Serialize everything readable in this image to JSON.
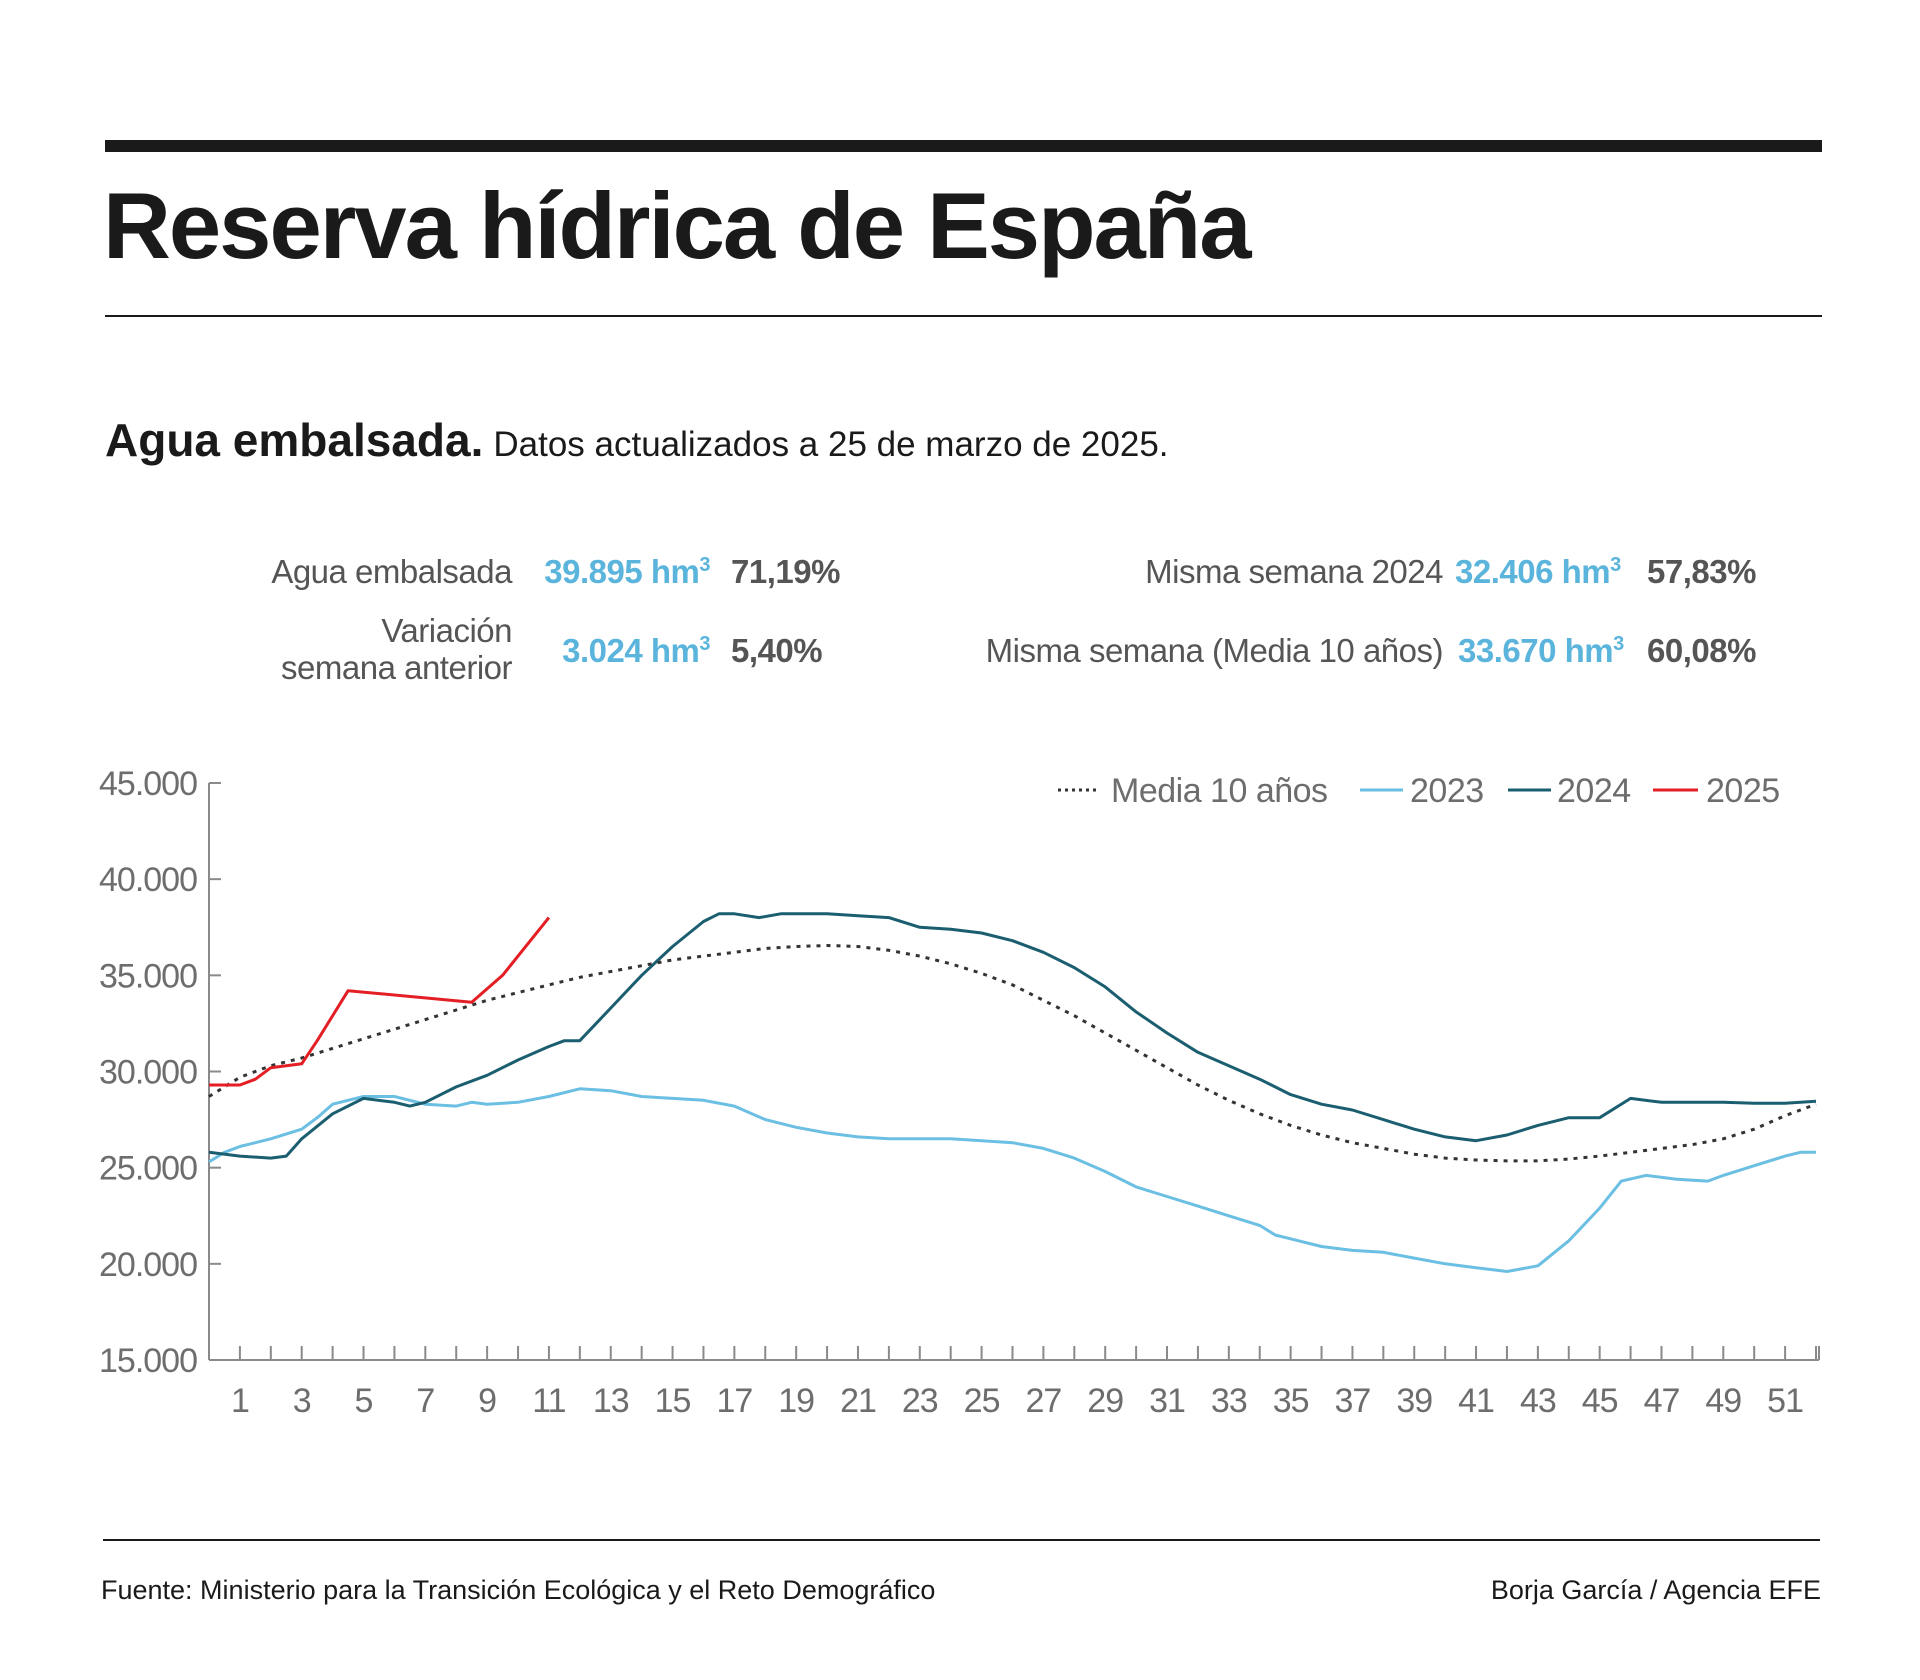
{
  "header": {
    "title": "Reserva hídrica de España",
    "subtitle_bold": "Agua embalsada.",
    "subtitle_rest": "Datos actualizados a 25 de marzo de 2025."
  },
  "stats": {
    "agua_embalsada": {
      "label": "Agua embalsada",
      "value": "39.895 hm",
      "unit_sup": "3",
      "pct": "71,19%"
    },
    "variacion": {
      "label_line1": "Variación",
      "label_line2": "semana anterior",
      "value": "3.024 hm",
      "unit_sup": "3",
      "pct": "5,40%"
    },
    "misma_2024": {
      "label": "Misma semana 2024",
      "value": "32.406 hm",
      "unit_sup": "3",
      "pct": "57,83%"
    },
    "misma_media": {
      "label": "Misma semana (Media 10 años)",
      "value": "33.670 hm",
      "unit_sup": "3",
      "pct": "60,08%"
    }
  },
  "colors": {
    "value_blue": "#5ab4dc",
    "media": "#333333",
    "y2023": "#6bbfe3",
    "y2024": "#1a5e70",
    "y2025": "#e31e24"
  },
  "chart_data": {
    "type": "line",
    "title": "",
    "xlabel": "",
    "ylabel": "",
    "xlim": [
      0,
      52
    ],
    "ylim": [
      15000,
      45000
    ],
    "y_ticks": [
      15000,
      20000,
      25000,
      30000,
      35000,
      40000,
      45000
    ],
    "y_tick_labels": [
      "15.000",
      "20.000",
      "25.000",
      "30.000",
      "35.000",
      "40.000",
      "45.000"
    ],
    "x_tick_labels": [
      "1",
      "3",
      "5",
      "7",
      "9",
      "11",
      "13",
      "15",
      "17",
      "19",
      "21",
      "23",
      "25",
      "27",
      "29",
      "31",
      "33",
      "35",
      "37",
      "39",
      "41",
      "43",
      "45",
      "47",
      "49",
      "51"
    ],
    "grid": false,
    "legend_position": "top-right",
    "series": [
      {
        "name": "Media 10 años",
        "style": "dotted",
        "color": "#333333",
        "x": [
          0,
          1,
          2,
          3,
          4,
          5,
          6,
          7,
          8,
          9,
          10,
          11,
          12,
          13,
          14,
          15,
          16,
          17,
          18,
          19,
          20,
          21,
          22,
          23,
          24,
          25,
          26,
          27,
          28,
          29,
          30,
          31,
          32,
          33,
          34,
          35,
          36,
          37,
          38,
          39,
          40,
          41,
          42,
          43,
          44,
          45,
          46,
          47,
          48,
          49,
          50,
          51,
          52
        ],
        "y": [
          28700,
          29700,
          30300,
          30700,
          31200,
          31700,
          32200,
          32700,
          33200,
          33700,
          34100,
          34500,
          34900,
          35200,
          35500,
          35800,
          36000,
          36200,
          36400,
          36500,
          36550,
          36500,
          36300,
          36000,
          35600,
          35100,
          34500,
          33700,
          32900,
          32000,
          31100,
          30200,
          29300,
          28500,
          27800,
          27200,
          26700,
          26300,
          26000,
          25700,
          25500,
          25400,
          25350,
          25350,
          25450,
          25600,
          25800,
          26000,
          26200,
          26500,
          27000,
          27700,
          28300
        ]
      },
      {
        "name": "2023",
        "style": "solid",
        "color": "#6bbfe3",
        "x": [
          0,
          0.5,
          1,
          2,
          3,
          3.5,
          4,
          5,
          6,
          7,
          8,
          8.5,
          9,
          10,
          11,
          12,
          13,
          14,
          15,
          16,
          17,
          18,
          19,
          20,
          21,
          22,
          24,
          26,
          27,
          28,
          29,
          30,
          31,
          32,
          33,
          34,
          34.5,
          35,
          36,
          37,
          38,
          39,
          40,
          41,
          42,
          43,
          44,
          45,
          45.7,
          46.5,
          47.5,
          48.5,
          49,
          50,
          51,
          51.5,
          52
        ],
        "y": [
          25300,
          25800,
          26100,
          26500,
          27000,
          27600,
          28300,
          28700,
          28700,
          28300,
          28200,
          28400,
          28300,
          28400,
          28700,
          29100,
          29000,
          28700,
          28600,
          28500,
          28200,
          27500,
          27100,
          26800,
          26600,
          26500,
          26500,
          26300,
          26000,
          25500,
          24800,
          24000,
          23500,
          23000,
          22500,
          22000,
          21500,
          21300,
          20900,
          20700,
          20600,
          20300,
          20000,
          19800,
          19600,
          19900,
          21200,
          22900,
          24300,
          24600,
          24400,
          24300,
          24600,
          25100,
          25600,
          25800,
          25800
        ]
      },
      {
        "name": "2024",
        "style": "solid",
        "color": "#1a5e70",
        "x": [
          0,
          1,
          2,
          2.5,
          3,
          4,
          5,
          6,
          6.5,
          7,
          8,
          9,
          10,
          11,
          11.5,
          12,
          13,
          14,
          15,
          16,
          16.5,
          17,
          17.8,
          18.5,
          20,
          21,
          22,
          23,
          24,
          25,
          26,
          27,
          28,
          29,
          30,
          31,
          32,
          33,
          34,
          35,
          36,
          37,
          38,
          39,
          40,
          41,
          42,
          43,
          44,
          45,
          46,
          47,
          48,
          49,
          50,
          51,
          52
        ],
        "y": [
          25800,
          25600,
          25500,
          25600,
          26500,
          27800,
          28600,
          28400,
          28200,
          28400,
          29200,
          29800,
          30600,
          31300,
          31600,
          31600,
          33300,
          35000,
          36500,
          37800,
          38200,
          38200,
          38000,
          38200,
          38200,
          38100,
          38000,
          37500,
          37400,
          37200,
          36800,
          36200,
          35400,
          34400,
          33100,
          32000,
          31000,
          30300,
          29600,
          28800,
          28300,
          28000,
          27500,
          27000,
          26600,
          26400,
          26700,
          27200,
          27600,
          27600,
          28600,
          28400,
          28400,
          28400,
          28350,
          28350,
          28450
        ]
      },
      {
        "name": "2025",
        "style": "solid",
        "color": "#e31e24",
        "x": [
          0,
          1,
          1.5,
          2,
          3,
          3.5,
          4.5,
          8.5,
          9.5,
          11
        ],
        "y": [
          29300,
          29300,
          29600,
          30200,
          30400,
          31600,
          34200,
          33600,
          35000,
          38000
        ]
      }
    ]
  },
  "footer": {
    "source": "Fuente: Ministerio para la Transición Ecológica y el Reto Demográfico",
    "credit": "Borja García / Agencia EFE"
  }
}
